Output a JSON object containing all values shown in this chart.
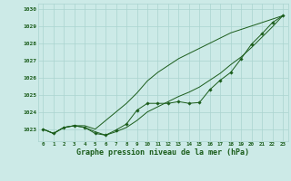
{
  "title": "Graphe pression niveau de la mer (hPa)",
  "bg_color": "#cceae7",
  "grid_color": "#aad4d0",
  "line_color": "#1a5c1a",
  "x_labels": [
    "0",
    "1",
    "2",
    "3",
    "4",
    "5",
    "6",
    "7",
    "8",
    "9",
    "10",
    "11",
    "12",
    "13",
    "14",
    "15",
    "16",
    "17",
    "18",
    "19",
    "20",
    "21",
    "22",
    "23"
  ],
  "ylim": [
    1022.3,
    1030.3
  ],
  "yticks": [
    1023,
    1024,
    1025,
    1026,
    1027,
    1028,
    1029,
    1030
  ],
  "series1": [
    1023.0,
    1022.75,
    1023.1,
    1023.2,
    1023.1,
    1022.75,
    1022.65,
    1022.95,
    1023.3,
    1024.1,
    1024.5,
    1024.5,
    1024.5,
    1024.6,
    1024.5,
    1024.55,
    1025.3,
    1025.85,
    1026.3,
    1027.1,
    1027.95,
    1028.55,
    1029.2,
    1029.6
  ],
  "series2": [
    1023.0,
    1022.75,
    1023.1,
    1023.2,
    1023.2,
    1023.0,
    1023.5,
    1024.0,
    1024.5,
    1025.1,
    1025.8,
    1026.3,
    1026.7,
    1027.1,
    1027.4,
    1027.7,
    1028.0,
    1028.3,
    1028.6,
    1028.8,
    1029.0,
    1029.2,
    1029.4,
    1029.6
  ],
  "series3": [
    1023.0,
    1022.75,
    1023.1,
    1023.2,
    1023.1,
    1022.85,
    1022.65,
    1022.85,
    1023.1,
    1023.5,
    1024.0,
    1024.3,
    1024.6,
    1024.9,
    1025.15,
    1025.45,
    1025.85,
    1026.25,
    1026.75,
    1027.2,
    1027.75,
    1028.35,
    1028.95,
    1029.6
  ]
}
